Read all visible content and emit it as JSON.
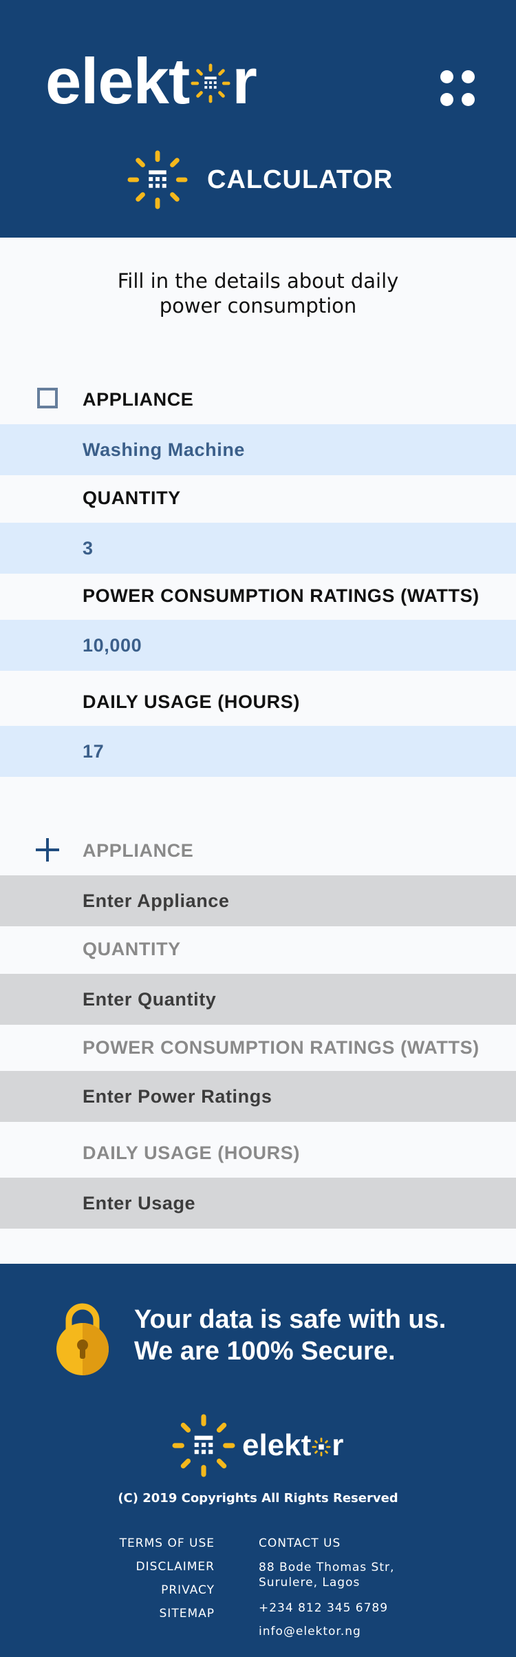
{
  "header": {
    "logo_left": "elekt",
    "logo_right": "r",
    "calculator_title": "CALCULATOR",
    "brand_color": "#154274",
    "accent_color": "#f5b81c"
  },
  "intro": {
    "line1": "Fill in the details about daily",
    "line2": "power consumption"
  },
  "appliance_entry": {
    "appliance_label": "APPLIANCE",
    "appliance_value": "Washing Machine",
    "quantity_label": "QUANTITY",
    "quantity_value": "3",
    "power_label": "POWER CONSUMPTION RATINGS (WATTS)",
    "power_value": "10,000",
    "usage_label": "DAILY USAGE (HOURS)",
    "usage_value": "17"
  },
  "new_appliance": {
    "appliance_label": "APPLIANCE",
    "appliance_placeholder": "Enter Appliance",
    "quantity_label": "QUANTITY",
    "quantity_placeholder": "Enter Quantity",
    "power_label": "POWER CONSUMPTION RATINGS (WATTS)",
    "power_placeholder": "Enter Power Ratings",
    "usage_label": "DAILY USAGE (HOURS)",
    "usage_placeholder": "Enter Usage"
  },
  "footer": {
    "secure_line1": "Your data is safe with us.",
    "secure_line2": "We are 100% Secure.",
    "logo_left": "elekt",
    "logo_right": "r",
    "copyright": "(C) 2019 Copyrights All Rights Reserved",
    "links": [
      "TERMS OF USE",
      "DISCLAIMER",
      "PRIVACY",
      "SITEMAP"
    ],
    "contact_heading": "CONTACT US",
    "address_line1": "88 Bode Thomas Str,",
    "address_line2": "Surulere, Lagos",
    "phone": "+234 812 345 6789",
    "email": "info@elektor.ng"
  }
}
